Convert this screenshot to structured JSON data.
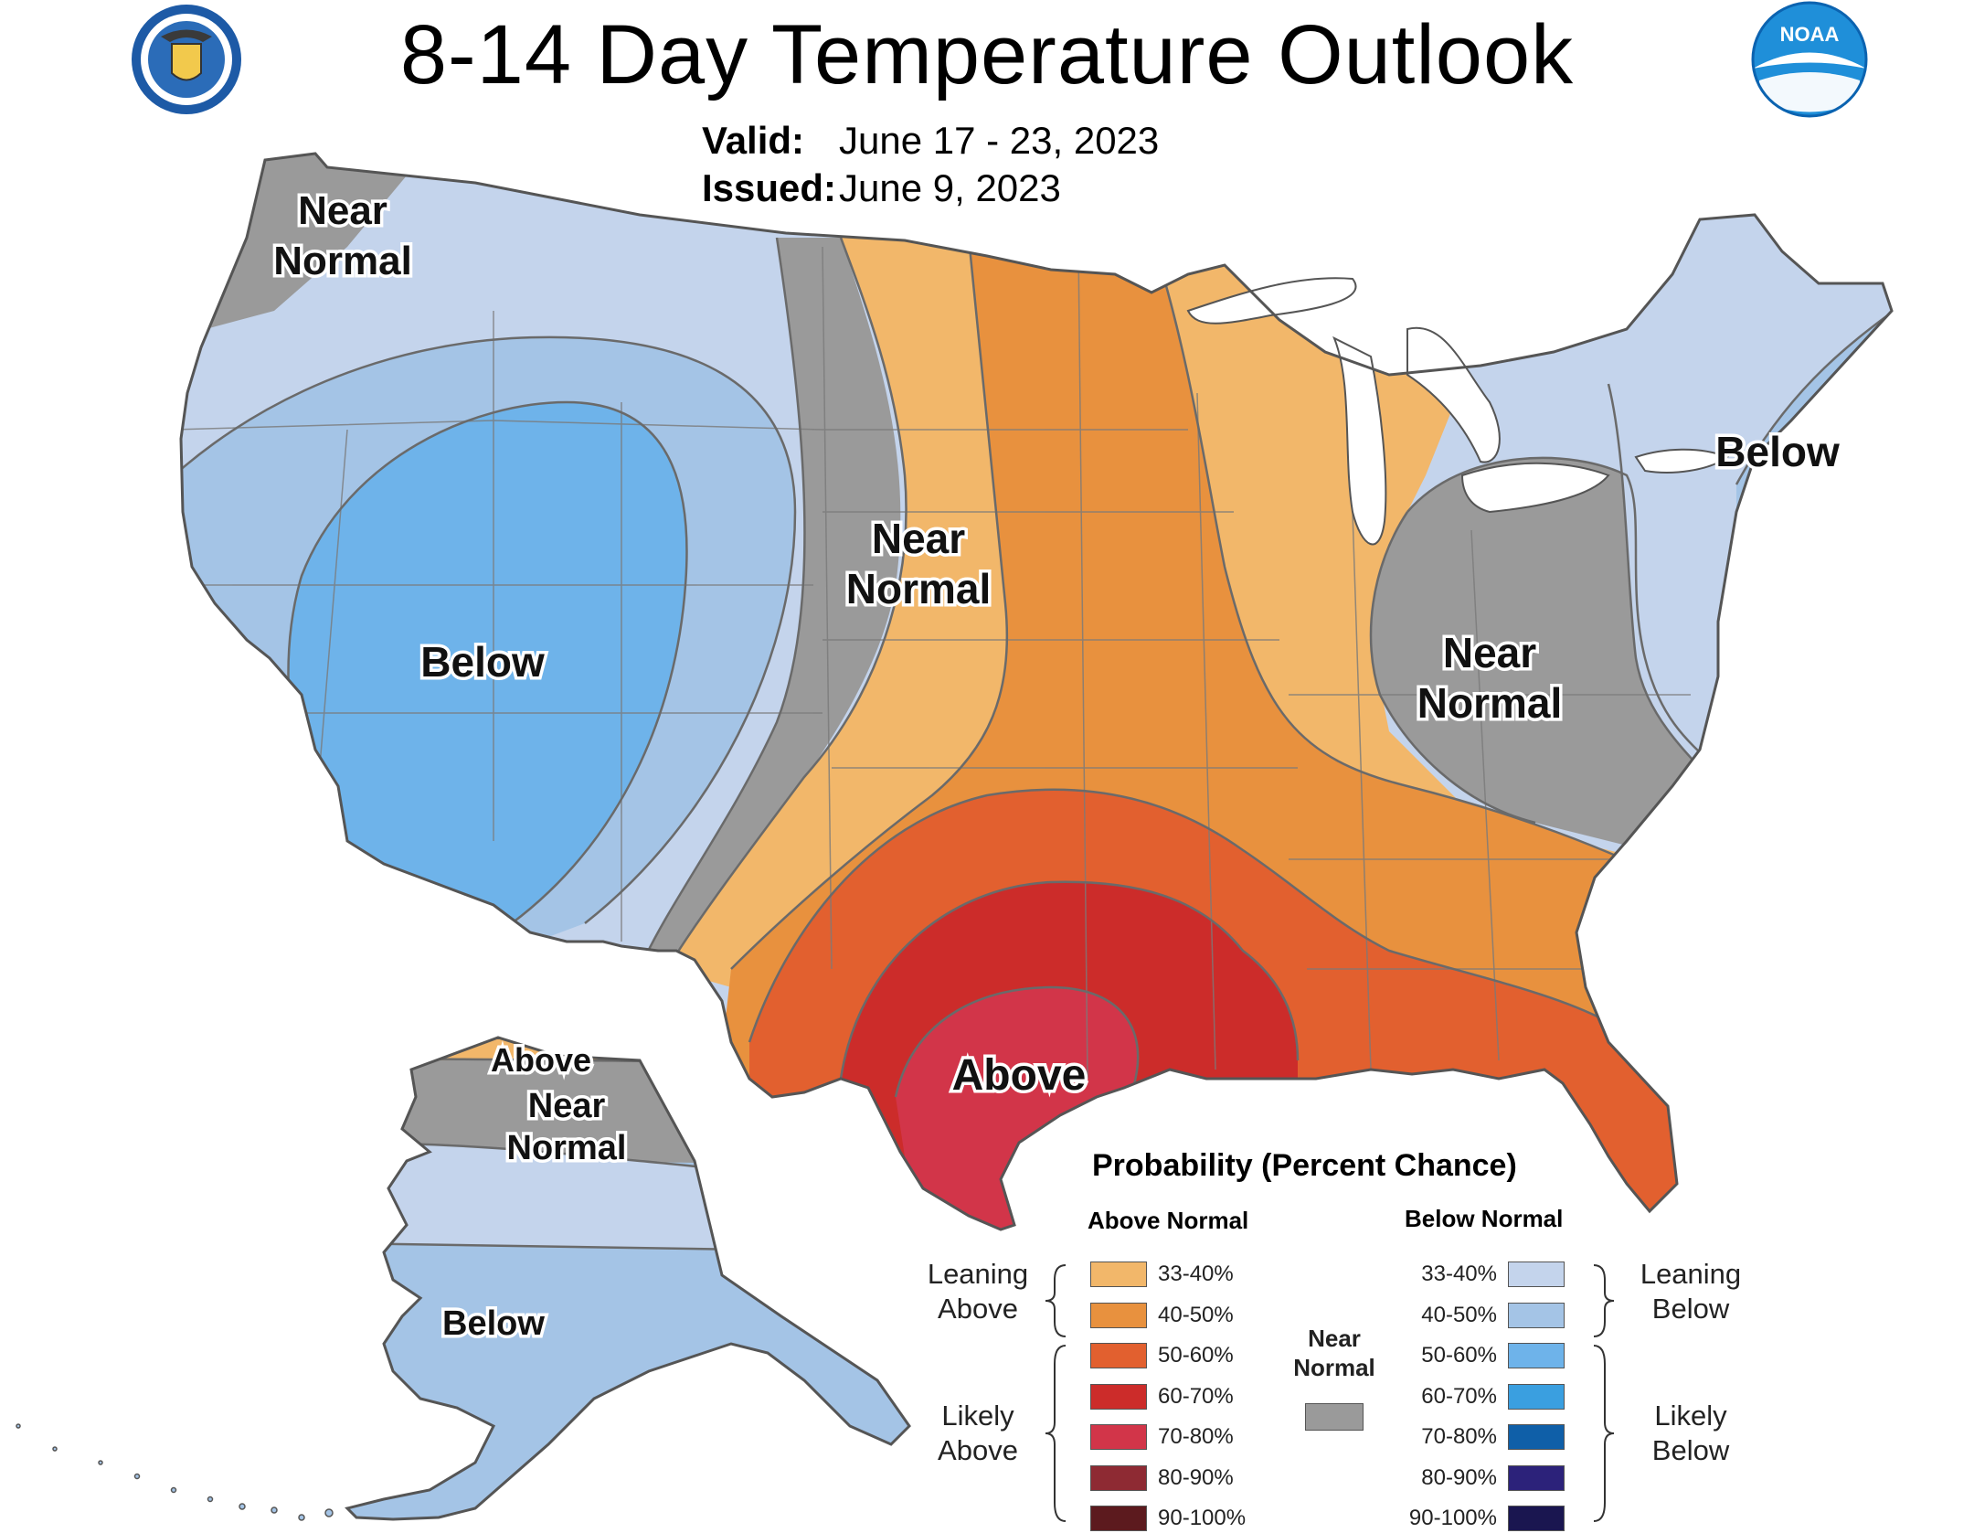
{
  "title": "8-14 Day Temperature Outlook",
  "valid_label": "Valid:",
  "valid_value": "June 17 - 23, 2023",
  "issued_label": "Issued:",
  "issued_value": "June 9, 2023",
  "logos": {
    "left": "department-of-commerce-seal",
    "right_text": "NOAA"
  },
  "map": {
    "region_labels": {
      "nw_near_1": "Near",
      "nw_near_2": "Normal",
      "west_below": "Below",
      "plains_near_1": "Near",
      "plains_near_2": "Normal",
      "ohio_near_1": "Near",
      "ohio_near_2": "Normal",
      "ne_below": "Below",
      "texas_above": "Above",
      "ak_above": "Above",
      "ak_near_1": "Near",
      "ak_near_2": "Normal",
      "ak_below": "Below"
    }
  },
  "legend": {
    "title": "Probability (Percent Chance)",
    "above_header": "Above Normal",
    "below_header": "Below Normal",
    "near_label_1": "Near",
    "near_label_2": "Normal",
    "near_color": "#9a9a9a",
    "leaning_above": [
      "Leaning",
      "Above"
    ],
    "likely_above": [
      "Likely",
      "Above"
    ],
    "leaning_below": [
      "Leaning",
      "Below"
    ],
    "likely_below": [
      "Likely",
      "Below"
    ],
    "above": [
      {
        "range": "33-40%",
        "color": "#f2b76a"
      },
      {
        "range": "40-50%",
        "color": "#e8913e"
      },
      {
        "range": "50-60%",
        "color": "#e2602f"
      },
      {
        "range": "60-70%",
        "color": "#cc2c2a"
      },
      {
        "range": "70-80%",
        "color": "#d23549"
      },
      {
        "range": "80-90%",
        "color": "#8e2a33"
      },
      {
        "range": "90-100%",
        "color": "#5c1a1e"
      }
    ],
    "below": [
      {
        "range": "33-40%",
        "color": "#c4d4ec"
      },
      {
        "range": "40-50%",
        "color": "#a4c4e6"
      },
      {
        "range": "50-60%",
        "color": "#6eb3ea"
      },
      {
        "range": "60-70%",
        "color": "#3a9fe0"
      },
      {
        "range": "70-80%",
        "color": "#0f5fa8"
      },
      {
        "range": "80-90%",
        "color": "#2c227a"
      },
      {
        "range": "90-100%",
        "color": "#1a1650"
      }
    ]
  }
}
